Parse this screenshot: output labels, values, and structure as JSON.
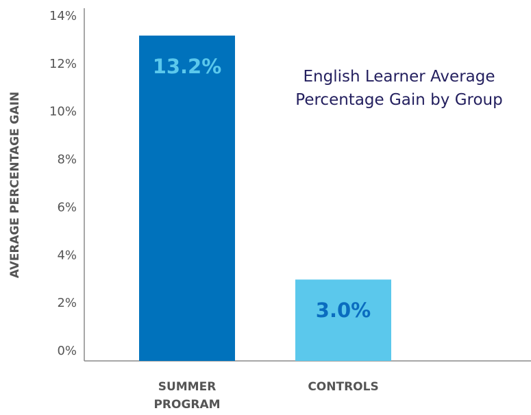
{
  "chart_data": {
    "type": "bar",
    "title": "English Learner Average Percentage Gain by Group",
    "y_label": "AVERAGE PERCENTAGE GAIN",
    "categories": [
      "SUMMER PROGRAM",
      "CONTROLS"
    ],
    "values": [
      13.2,
      3.0
    ],
    "value_labels": [
      "13.2%",
      "3.0%"
    ],
    "colors": [
      "#0072bc",
      "#5bc8ec"
    ],
    "label_colors": [
      "#5bc8ec",
      "#0a6cbf"
    ],
    "ylim": [
      0,
      14
    ],
    "yticks": [
      {
        "value": 0,
        "label": "0%"
      },
      {
        "value": 2,
        "label": "2%"
      },
      {
        "value": 4,
        "label": "4%"
      },
      {
        "value": 6,
        "label": "6%"
      },
      {
        "value": 8,
        "label": "8%"
      },
      {
        "value": 10,
        "label": "10%"
      },
      {
        "value": 12,
        "label": "12%"
      },
      {
        "value": 14,
        "label": "14%"
      }
    ]
  }
}
